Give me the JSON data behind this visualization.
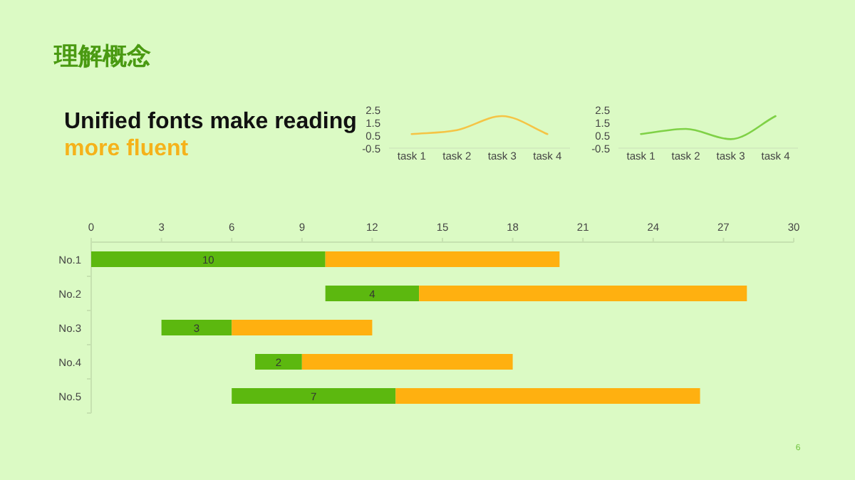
{
  "chart_data": [
    {
      "type": "other",
      "title": "理解概念",
      "annotations": [
        "Unified fonts make reading",
        "more fluent"
      ]
    },
    {
      "type": "line",
      "categories": [
        "task 1",
        "task 2",
        "task 3",
        "task 4"
      ],
      "ylim": [
        -0.5,
        2.5
      ],
      "yticks": [
        -0.5,
        0.5,
        1.5,
        2.5
      ],
      "series": [
        {
          "color": "#f5c445",
          "values": [
            0.6,
            0.9,
            2.0,
            0.6
          ]
        }
      ]
    },
    {
      "type": "line",
      "categories": [
        "task 1",
        "task 2",
        "task 3",
        "task 4"
      ],
      "ylim": [
        -0.5,
        2.5
      ],
      "yticks": [
        -0.5,
        0.5,
        1.5,
        2.5
      ],
      "series": [
        {
          "color": "#7fd146",
          "values": [
            0.6,
            1.0,
            0.2,
            2.0
          ]
        }
      ]
    },
    {
      "type": "bar",
      "orientation": "horizontal",
      "categories": [
        "No.1",
        "No.2",
        "No.3",
        "No.4",
        "No.5"
      ],
      "xlim": [
        0,
        30
      ],
      "xticks": [
        0,
        3,
        6,
        9,
        12,
        15,
        18,
        21,
        24,
        27,
        30
      ],
      "series": [
        {
          "color": "#5cb80f",
          "base": [
            0,
            10,
            3,
            7,
            6
          ],
          "values": [
            10,
            4,
            3,
            2,
            7
          ],
          "value_labels": [
            "10",
            "4",
            "3",
            "2",
            "7"
          ]
        },
        {
          "color": "#ffb010",
          "base": [
            10,
            14,
            6,
            9,
            13
          ],
          "values": [
            10,
            14,
            6,
            9,
            13
          ]
        }
      ],
      "annotations": [
        "6"
      ]
    }
  ]
}
